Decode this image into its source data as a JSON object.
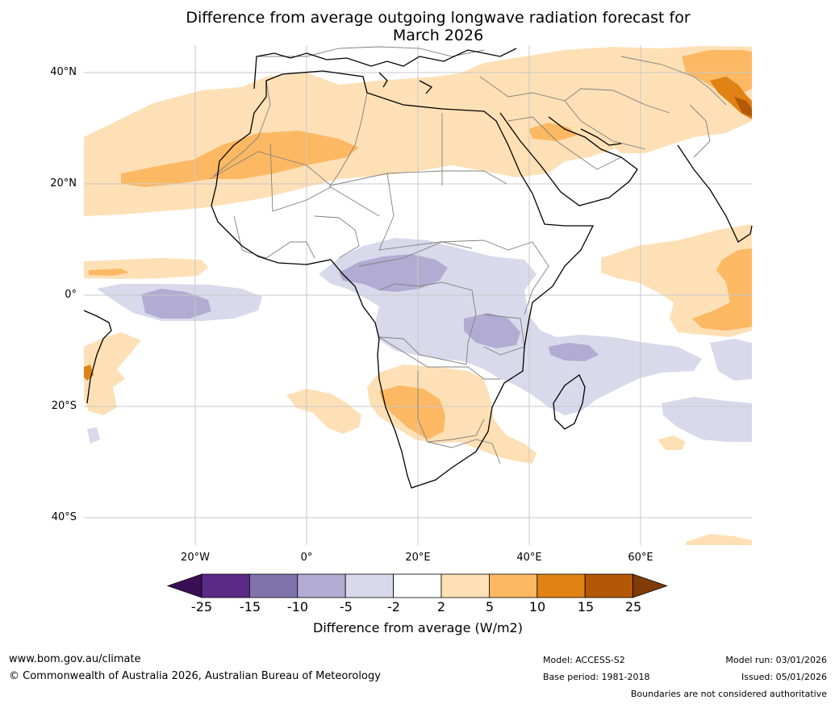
{
  "title": {
    "line1": "Difference from average outgoing longwave radiation forecast for",
    "line2": "March 2026"
  },
  "axes": {
    "lat_labels": [
      "40°N",
      "20°N",
      "0°",
      "20°S",
      "40°S"
    ],
    "lon_labels": [
      "20°W",
      "0°",
      "20°E",
      "40°E",
      "60°E"
    ]
  },
  "colorbar": {
    "ticks": [
      "-25",
      "-15",
      "-10",
      "-5",
      "-2",
      "2",
      "5",
      "10",
      "15",
      "25"
    ],
    "colors": [
      "#3b0f55",
      "#5a2a86",
      "#8073ac",
      "#b2abd2",
      "#d8daeb",
      "#ffffff",
      "#fee0b6",
      "#fdb863",
      "#e08214",
      "#b35806",
      "#7f3b08"
    ],
    "title": "Difference from average (W/m2)"
  },
  "footer": {
    "website": "www.bom.gov.au/climate",
    "copyright": "© Commonwealth of Australia 2026, Australian Bureau of Meteorology",
    "model": "Model: ACCESS-S2",
    "base_period": "Base period: 1981-2018",
    "model_run": "Model run: 03/01/2026",
    "issued": "Issued: 05/01/2026",
    "disclaimer": "Boundaries are not considered authoritative"
  }
}
